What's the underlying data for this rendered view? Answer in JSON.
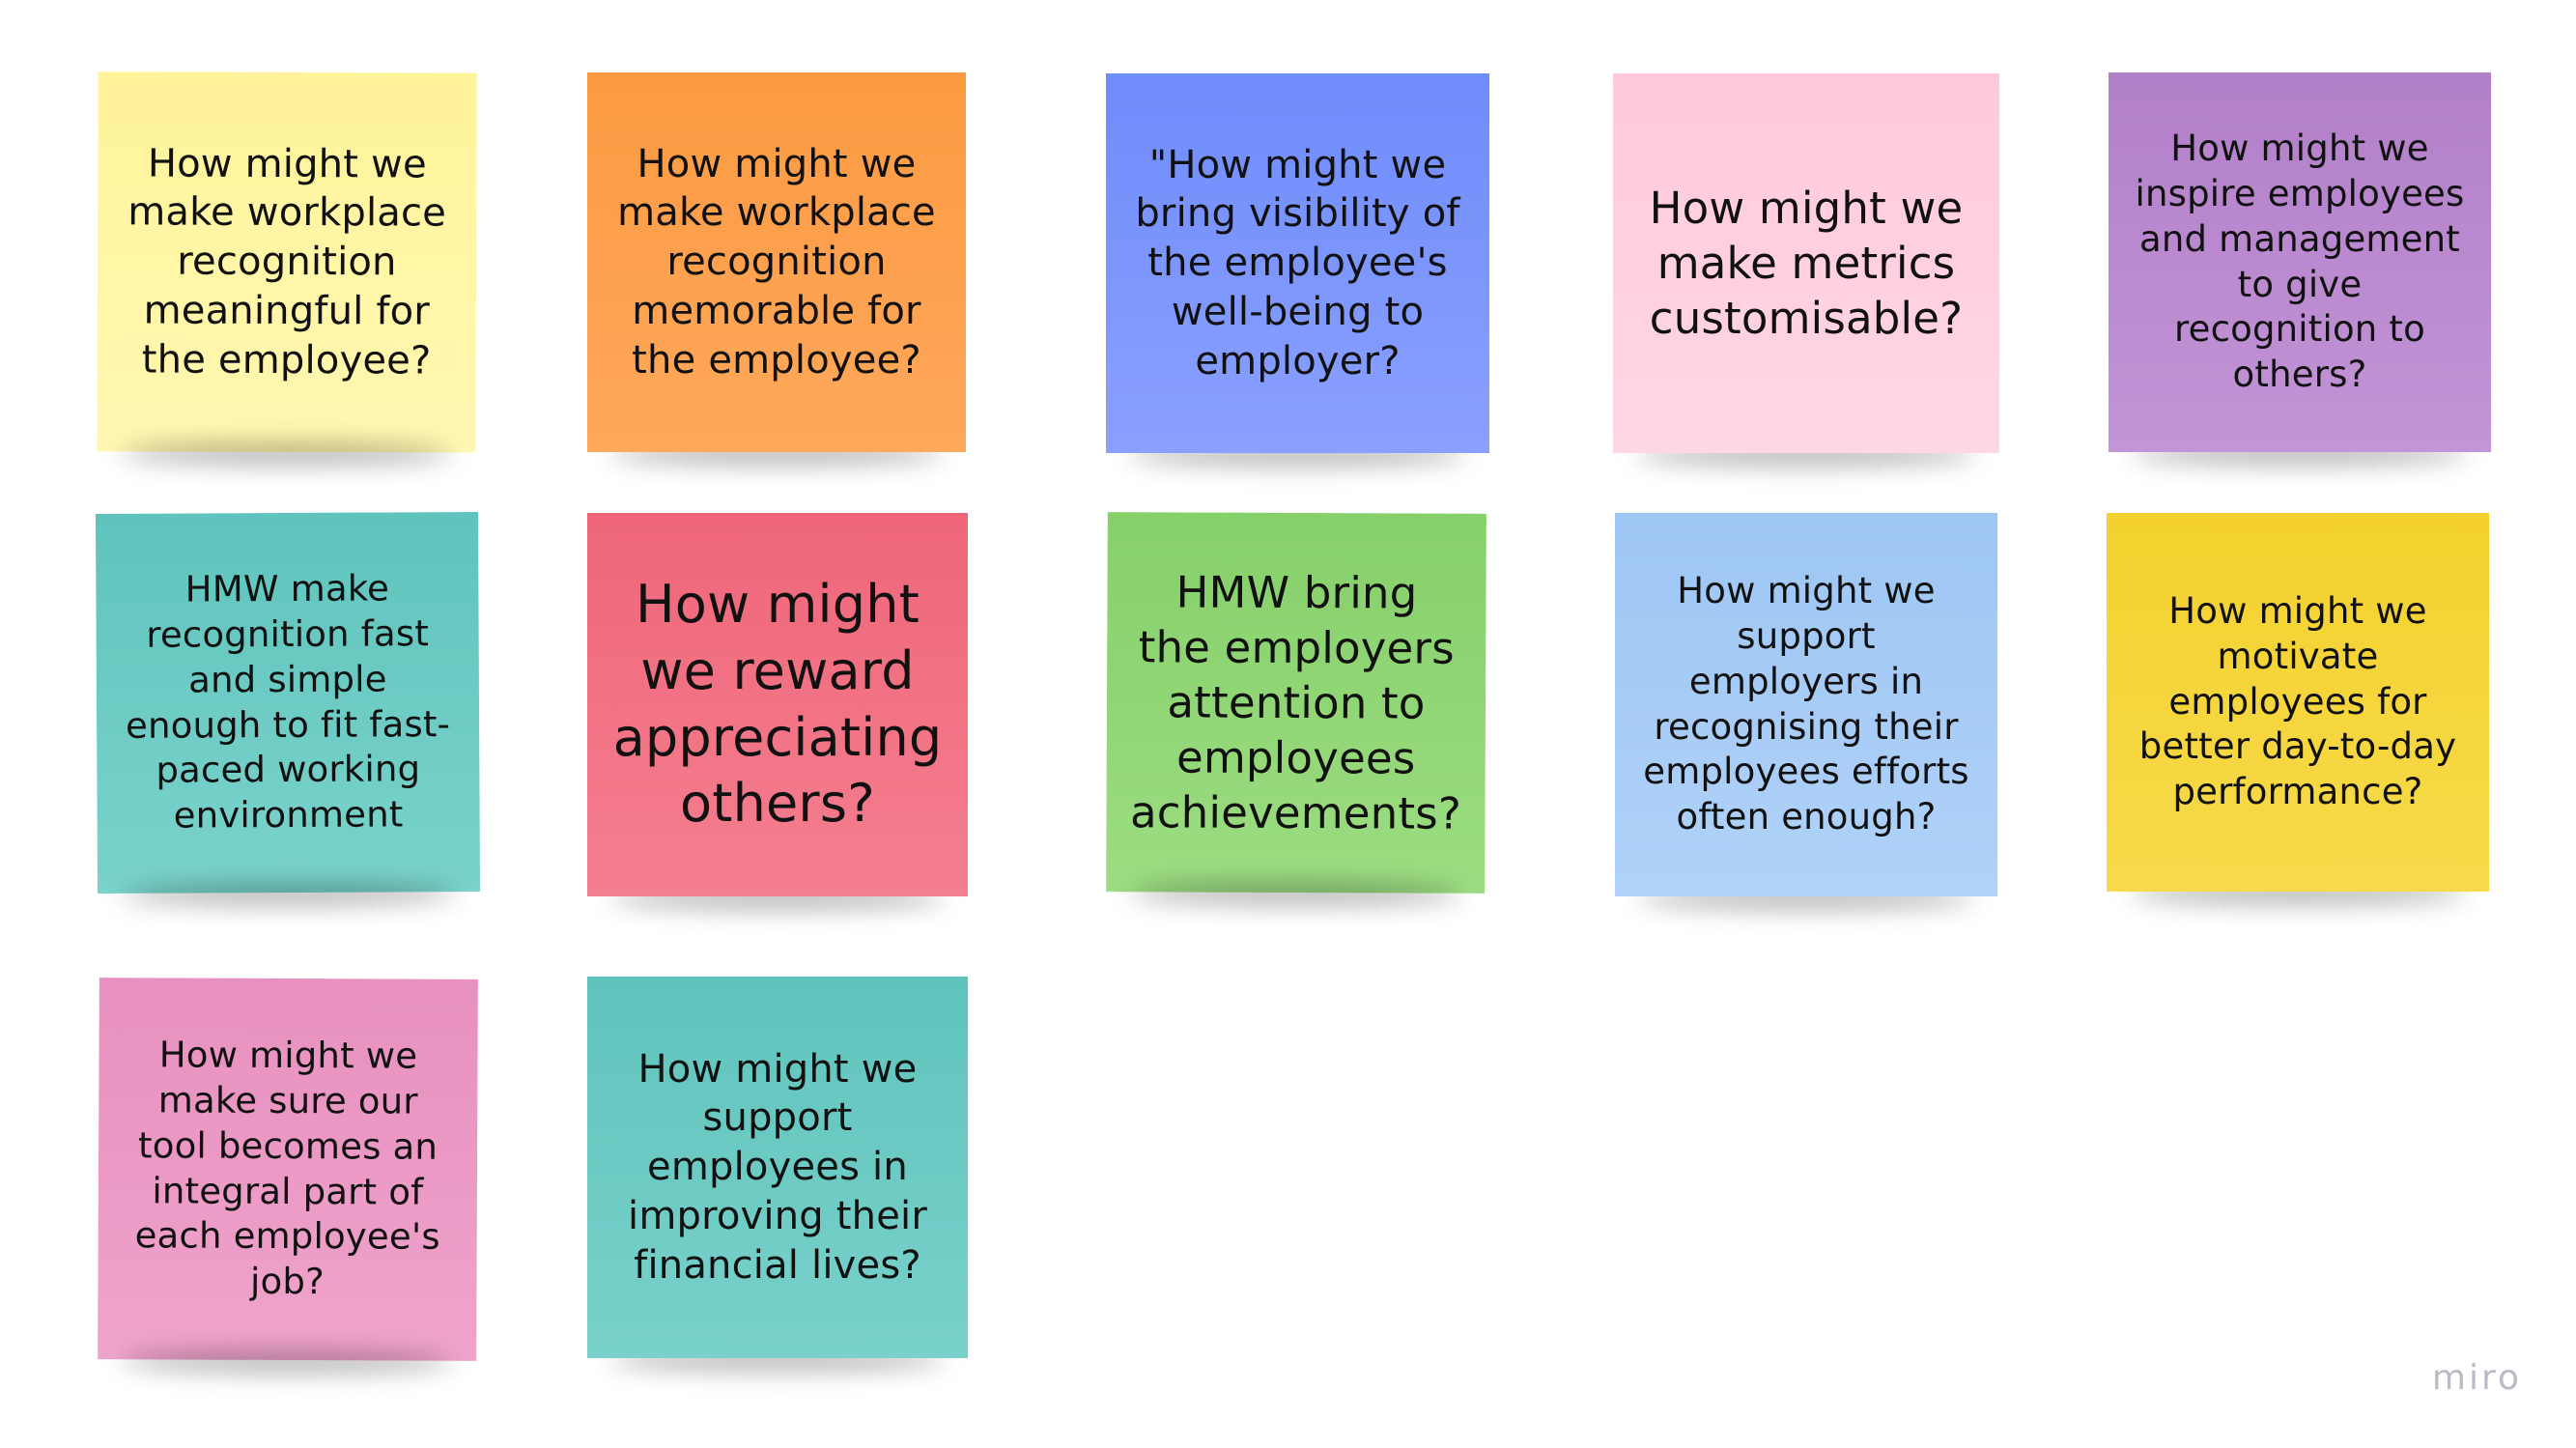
{
  "board": {
    "watermark": "miro",
    "notes": [
      {
        "text": "How might we\nmake workplace\nrecognition\nmeaningful for\nthe employee?",
        "color": "#fff49a"
      },
      {
        "text": "How might we\nmake workplace\nrecognition\nmemorable for\nthe employee?",
        "color": "#fc9a41"
      },
      {
        "text": "\"How might we\nbring visibility of\nthe employee's\nwell-being to\nemployer?",
        "color": "#6f8cfb"
      },
      {
        "text": "How might we\nmake metrics\ncustomisable?",
        "color": "#ffc9dc"
      },
      {
        "text": "How might we\ninspire employees\nand management\nto give\nrecognition to\nothers?",
        "color": "#b27fc9"
      },
      {
        "text": "HMW make\nrecognition fast\nand simple\nenough to fit fast-\npaced working\nenvironment",
        "color": "#5fc4bd"
      },
      {
        "text": "How might\nwe reward\nappreciating\nothers?",
        "color": "#ef6679"
      },
      {
        "text": "HMW bring\nthe employers\nattention to\nemployees\nachievements?",
        "color": "#86d06a"
      },
      {
        "text": "How might we\nsupport\nemployers in\nrecognising their\nemployees efforts\noften enough?",
        "color": "#9ec6f4"
      },
      {
        "text": "How might we\nmotivate\nemployees for\nbetter day-to-day\nperformance?",
        "color": "#f4d12d"
      },
      {
        "text": "How might we\nmake sure our\ntool becomes an\nintegral part of\neach employee's\njob?",
        "color": "#e890bf"
      },
      {
        "text": "How might we\nsupport\nemployees in\nimproving their\nfinancial lives?",
        "color": "#5fc4bd"
      }
    ]
  }
}
